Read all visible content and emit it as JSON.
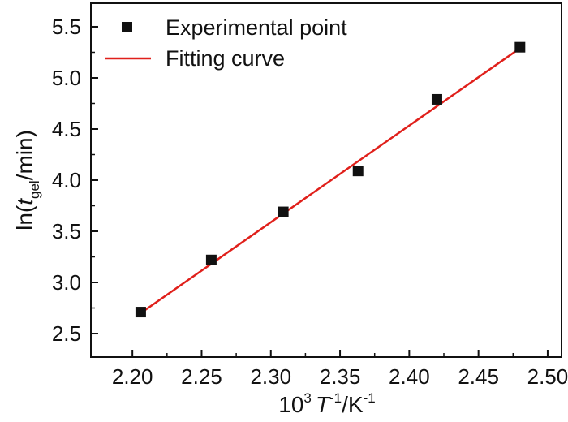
{
  "chart_data": {
    "type": "scatter",
    "title": "",
    "xlabel": {
      "prefix": "10",
      "prefix_sup": "3",
      "var": "T",
      "var_sup": "-1",
      "mid": "/K",
      "unit_sup": "-1"
    },
    "ylabel": {
      "prefix": "ln(",
      "var": "t",
      "var_sub": "gel",
      "suffix": "/min)"
    },
    "xlim": [
      2.17,
      2.51
    ],
    "ylim": [
      2.27,
      5.73
    ],
    "xticks": [
      "2.20",
      "2.25",
      "2.30",
      "2.35",
      "2.40",
      "2.45",
      "2.50"
    ],
    "yticks": [
      "2.5",
      "3.0",
      "3.5",
      "4.0",
      "4.5",
      "5.0",
      "5.5"
    ],
    "grid": false,
    "legend_position": "top-left",
    "series": [
      {
        "name": "Experimental point",
        "kind": "scatter",
        "marker": "square",
        "color": "#111111",
        "x": [
          2.206,
          2.257,
          2.309,
          2.363,
          2.42,
          2.48
        ],
        "y": [
          2.71,
          3.22,
          3.69,
          4.09,
          4.79,
          5.3
        ]
      },
      {
        "name": "Fitting curve",
        "kind": "line",
        "color": "#e0201b",
        "x": [
          2.206,
          2.48
        ],
        "y": [
          2.7,
          5.29
        ]
      }
    ]
  }
}
